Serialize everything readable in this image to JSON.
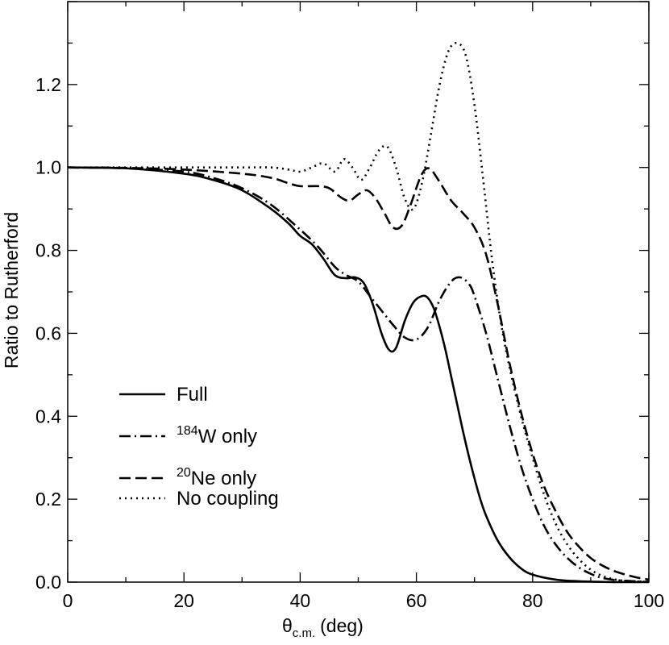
{
  "chart_data": {
    "type": "line",
    "title": "",
    "xlabel": {
      "symbol": "θ",
      "subscript": "c.m.",
      "unit": "(deg)"
    },
    "ylabel": "Ratio to Rutherford",
    "xlim": [
      0,
      100
    ],
    "ylim": [
      0,
      1.4
    ],
    "x_ticks": [
      0,
      20,
      40,
      60,
      80,
      100
    ],
    "x_tick_labels": [
      "0",
      "20",
      "40",
      "60",
      "80",
      "100"
    ],
    "y_ticks": [
      0,
      0.2,
      0.4,
      0.6,
      0.8,
      1.0,
      1.2
    ],
    "y_tick_labels": [
      "0.0",
      "0.2",
      "0.4",
      "0.6",
      "0.8",
      "1.0",
      "1.2"
    ],
    "grid": false,
    "legend_position": "lower-left",
    "series": [
      {
        "name": "Full",
        "legend_sup": "",
        "legend_main": "Full",
        "style": "solid",
        "x": [
          0,
          10,
          20,
          25,
          30,
          35,
          38,
          40,
          42,
          44,
          46,
          48,
          49.5,
          51,
          52.5,
          54,
          55.3,
          56.5,
          58,
          59.5,
          61,
          62,
          63,
          64,
          65,
          66,
          67,
          68,
          69,
          70,
          71,
          72,
          74,
          76,
          78,
          80,
          84,
          88,
          92,
          96,
          100
        ],
        "y": [
          1.0,
          0.998,
          0.985,
          0.97,
          0.945,
          0.9,
          0.865,
          0.835,
          0.815,
          0.78,
          0.74,
          0.733,
          0.735,
          0.72,
          0.67,
          0.6,
          0.56,
          0.565,
          0.63,
          0.675,
          0.69,
          0.685,
          0.66,
          0.615,
          0.56,
          0.495,
          0.43,
          0.365,
          0.305,
          0.25,
          0.2,
          0.16,
          0.1,
          0.06,
          0.033,
          0.018,
          0.006,
          0.002,
          0.0005,
          0.0001,
          0.0
        ]
      },
      {
        "name": "184W only",
        "legend_sup": "184",
        "legend_main": "W only",
        "style": "dashdot",
        "x": [
          0,
          10,
          20,
          25,
          30,
          35,
          40,
          43,
          46,
          48,
          50,
          52,
          54,
          56,
          58,
          60,
          62,
          64,
          66,
          67.5,
          69,
          70,
          72,
          74,
          76,
          78,
          80,
          82,
          84,
          86,
          88,
          90,
          92,
          95,
          100
        ],
        "y": [
          1.0,
          0.998,
          0.99,
          0.975,
          0.95,
          0.91,
          0.85,
          0.81,
          0.76,
          0.74,
          0.725,
          0.69,
          0.655,
          0.62,
          0.59,
          0.585,
          0.615,
          0.68,
          0.725,
          0.735,
          0.72,
          0.69,
          0.6,
          0.49,
          0.38,
          0.28,
          0.2,
          0.135,
          0.09,
          0.058,
          0.035,
          0.02,
          0.01,
          0.004,
          0.001
        ]
      },
      {
        "name": "20Ne only",
        "legend_sup": "20",
        "legend_main": "Ne only",
        "style": "dashed",
        "x": [
          0,
          10,
          20,
          30,
          35,
          38,
          40,
          43,
          45,
          47,
          48.5,
          50,
          51.5,
          53,
          54.5,
          56,
          57.5,
          59,
          60.5,
          61.5,
          62.5,
          64,
          66,
          68,
          70,
          72,
          74,
          76,
          78,
          80,
          82,
          84,
          86,
          88,
          90,
          92,
          94,
          96,
          98,
          100
        ],
        "y": [
          1.0,
          0.999,
          0.995,
          0.985,
          0.975,
          0.962,
          0.955,
          0.955,
          0.95,
          0.928,
          0.92,
          0.935,
          0.945,
          0.925,
          0.89,
          0.855,
          0.86,
          0.91,
          0.97,
          0.995,
          0.995,
          0.965,
          0.92,
          0.89,
          0.855,
          0.79,
          0.67,
          0.53,
          0.41,
          0.31,
          0.23,
          0.17,
          0.12,
          0.085,
          0.058,
          0.04,
          0.027,
          0.018,
          0.011,
          0.006
        ]
      },
      {
        "name": "No coupling",
        "legend_sup": "",
        "legend_main": "No coupling",
        "style": "dotted",
        "x": [
          0,
          10,
          20,
          30,
          35,
          38,
          40,
          42,
          44,
          46,
          47.5,
          49,
          50.5,
          52,
          53.5,
          55,
          56.5,
          58,
          59.5,
          61,
          62.5,
          64,
          65.5,
          67,
          68.5,
          70,
          71.5,
          73,
          74.5,
          76,
          78,
          80,
          82,
          84,
          86,
          88,
          90,
          92,
          94,
          96,
          100
        ],
        "y": [
          1.0,
          1.0,
          1.0,
          1.0,
          1.0,
          0.995,
          0.99,
          1.0,
          1.01,
          0.99,
          1.02,
          1.0,
          0.97,
          1.0,
          1.04,
          1.05,
          1.0,
          0.925,
          0.9,
          0.965,
          1.08,
          1.2,
          1.28,
          1.3,
          1.27,
          1.15,
          0.97,
          0.78,
          0.63,
          0.52,
          0.4,
          0.3,
          0.21,
          0.14,
          0.09,
          0.055,
          0.03,
          0.015,
          0.007,
          0.003,
          0.0005
        ]
      }
    ]
  }
}
